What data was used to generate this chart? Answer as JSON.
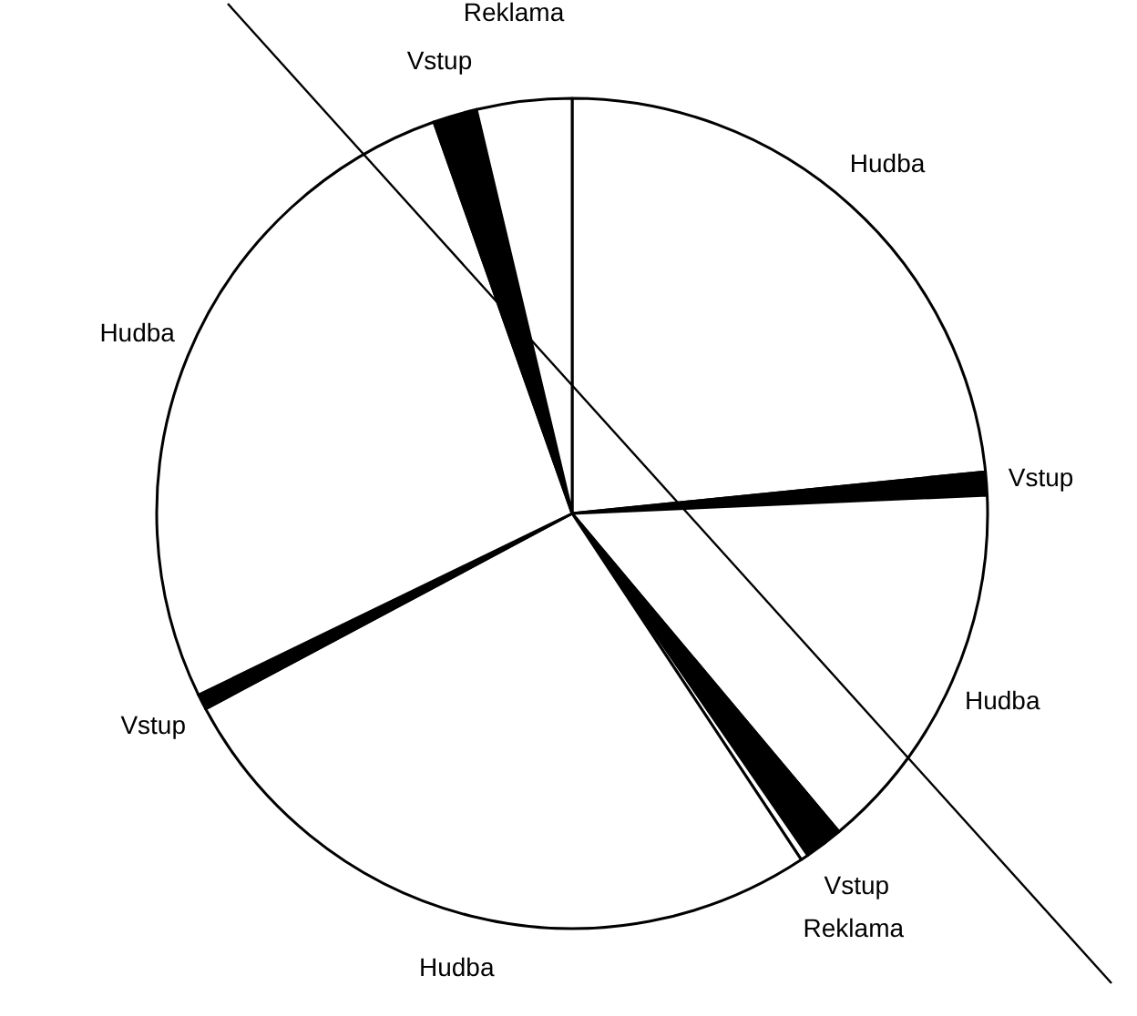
{
  "chart_data": {
    "type": "pie",
    "categories": [
      "Hudba",
      "Vstup",
      "Hudba",
      "Vstup",
      "Reklama",
      "Hudba",
      "Vstup",
      "Hudba",
      "Vstup",
      "Reklama"
    ],
    "values": [
      23.4,
      0.9,
      14.6,
      1.5,
      0.3,
      26.5,
      0.6,
      26.8,
      1.7,
      3.7
    ],
    "colors": [
      "#ffffff",
      "#000000",
      "#ffffff",
      "#000000",
      "#ffffff",
      "#ffffff",
      "#000000",
      "#ffffff",
      "#000000",
      "#ffffff"
    ]
  }
}
